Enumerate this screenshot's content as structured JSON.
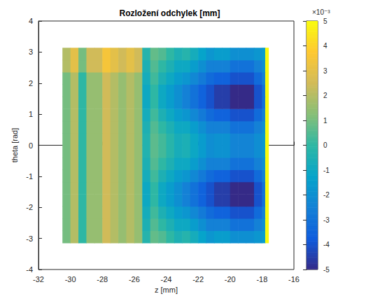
{
  "chart_data": {
    "type": "heatmap",
    "title": "Rozložení odchylek [mm]",
    "x_label": "z [mm]",
    "y_label": "theta [rad]",
    "xlim": [
      -32,
      -16
    ],
    "xticks": [
      -32,
      -30,
      -28,
      -26,
      -24,
      -22,
      -20,
      -18,
      -16
    ],
    "ylim": [
      -4,
      4
    ],
    "yticks": [
      -4,
      -3,
      -2,
      -1,
      0,
      1,
      2,
      3,
      4
    ],
    "grid": false,
    "x_edges": [
      -30.5,
      -30,
      -29.5,
      -29,
      -28.5,
      -28,
      -27.5,
      -27,
      -26.5,
      -26,
      -25.5,
      -25,
      -24.5,
      -24,
      -23.5,
      -23,
      -22.5,
      -22,
      -21.5,
      -21,
      -20.5,
      -20,
      -19.5,
      -19,
      -18.5,
      -18,
      -17.8,
      -17.6
    ],
    "y_edges": [
      -3.14,
      -2.7475,
      -2.355,
      -1.9625,
      -1.57,
      -1.1775,
      -0.785,
      -0.3925,
      0,
      0.3925,
      0.785,
      1.1775,
      1.57,
      1.9625,
      2.355,
      2.7475,
      3.14
    ],
    "cells": [
      [
        1,
        2,
        0,
        1.5,
        1.5,
        2.5,
        2,
        1.5,
        2,
        1.5,
        -0.25,
        0.75,
        0.5,
        0,
        -0.5,
        -0.25,
        -0.75,
        -1.25,
        -1.75,
        -1.5,
        -1.5,
        -2,
        -2,
        -2,
        -1.75,
        -1.5,
        5
      ],
      [
        1,
        2,
        0,
        1.5,
        1.5,
        2.5,
        2,
        1.5,
        2,
        1.5,
        -0.5,
        0.5,
        0,
        -0.5,
        -1,
        -1,
        -1.5,
        -2,
        -2.5,
        -2.5,
        -2.5,
        -3,
        -3,
        -3,
        -2.5,
        -2,
        5
      ],
      [
        1,
        2,
        0,
        1.5,
        1.5,
        2.5,
        2,
        1.5,
        2,
        1.5,
        -0.75,
        0.25,
        -0.5,
        -1,
        -1.5,
        -1.75,
        -2.25,
        -2.75,
        -3.25,
        -3.5,
        -3.5,
        -4,
        -4,
        -4,
        -3.25,
        -2.5,
        5
      ],
      [
        1,
        2,
        0,
        1.5,
        1.5,
        2.5,
        2,
        1.5,
        2,
        1.5,
        -1,
        0,
        -1,
        -1.5,
        -2,
        -2.5,
        -3,
        -3.5,
        -4,
        -4.5,
        -4.5,
        -5,
        -5,
        -5,
        -4,
        -3,
        5
      ],
      [
        1,
        2,
        0,
        1.5,
        1.5,
        2.5,
        2,
        1.5,
        2,
        1.5,
        -1,
        0,
        -1,
        -1.5,
        -2,
        -2.5,
        -3,
        -3.5,
        -4,
        -4.5,
        -4.5,
        -5,
        -5,
        -5,
        -4,
        -3,
        5
      ],
      [
        1,
        2,
        0,
        1.5,
        1.5,
        2.5,
        2,
        1.5,
        2,
        1.5,
        -0.75,
        0.25,
        -0.5,
        -1,
        -1.5,
        -1.75,
        -2.25,
        -2.75,
        -3.25,
        -3.5,
        -3.5,
        -4,
        -4,
        -4,
        -3.25,
        -2.5,
        5
      ],
      [
        1,
        2,
        0,
        1.5,
        1.5,
        2.5,
        2,
        1.5,
        2,
        1.5,
        -0.5,
        0.5,
        0,
        -0.5,
        -1,
        -1,
        -1.5,
        -2,
        -2.5,
        -2.5,
        -2.5,
        -3,
        -3,
        -3,
        -2.5,
        -2,
        5
      ],
      [
        1,
        2,
        0,
        1.5,
        1.5,
        2.5,
        2,
        1.5,
        2,
        1.5,
        -0.35,
        0.65,
        0.3,
        -0.2,
        -0.7,
        -0.55,
        -1.05,
        -1.55,
        -2.05,
        -1.9,
        -1.9,
        -2.4,
        -2.4,
        -2.4,
        -2.05,
        -1.7,
        5
      ],
      [
        1,
        2,
        0,
        1.5,
        1.5,
        2.5,
        2,
        1.5,
        2,
        1.5,
        -0.35,
        0.65,
        0.3,
        -0.2,
        -0.7,
        -0.55,
        -1.05,
        -1.55,
        -2.05,
        -1.9,
        -1.9,
        -2.4,
        -2.4,
        -2.4,
        -2.05,
        -1.7,
        5
      ],
      [
        1,
        2,
        0,
        1.5,
        1.5,
        2.5,
        2,
        1.5,
        2,
        1.5,
        -0.5,
        0.5,
        0,
        -0.5,
        -1,
        -1,
        -1.5,
        -2,
        -2.5,
        -2.5,
        -2.5,
        -3,
        -3,
        -3,
        -2.5,
        -2,
        5
      ],
      [
        1,
        2,
        0,
        1.5,
        1.5,
        2.5,
        2,
        1.5,
        2,
        1.5,
        -0.75,
        0.25,
        -0.5,
        -1,
        -1.5,
        -1.75,
        -2.25,
        -2.75,
        -3.25,
        -3.5,
        -3.5,
        -4,
        -4,
        -4,
        -3.25,
        -2.5,
        5
      ],
      [
        1,
        2,
        0,
        1.5,
        1.5,
        2.5,
        2,
        1.5,
        2,
        1.5,
        -1,
        0,
        -1,
        -1.5,
        -2,
        -2.5,
        -3,
        -3.5,
        -4,
        -4.5,
        -4.5,
        -5,
        -5,
        -5,
        -4,
        -3,
        5
      ],
      [
        1,
        2,
        0,
        1.5,
        1.5,
        2.5,
        2,
        1.5,
        2,
        1.5,
        -1,
        0,
        -1,
        -1.5,
        -2,
        -2.5,
        -3,
        -3.5,
        -4,
        -4.5,
        -4.5,
        -5,
        -5,
        -5,
        -4,
        -3,
        5
      ],
      [
        1,
        2,
        0,
        1.5,
        1.5,
        2.5,
        2,
        1.5,
        2,
        1.5,
        -0.75,
        0.25,
        -0.5,
        -1,
        -1.5,
        -1.75,
        -2.25,
        -2.75,
        -3.25,
        -3.5,
        -3.5,
        -4,
        -4,
        -4,
        -3.25,
        -2.5,
        5
      ],
      [
        2,
        3,
        1,
        2.5,
        2.5,
        3.5,
        3,
        2.5,
        3,
        2.5,
        -0.5,
        0.5,
        0,
        -0.5,
        -1,
        -1,
        -1.5,
        -2,
        -2.5,
        -2.5,
        -2.5,
        -3,
        -3,
        -3,
        -2.5,
        -2,
        5
      ],
      [
        2,
        3,
        1,
        2.5,
        2.5,
        3.5,
        3,
        2.5,
        3,
        2.5,
        -0.25,
        0.75,
        0.5,
        0,
        -0.5,
        -0.25,
        -0.75,
        -1.25,
        -1.75,
        -1.5,
        -1.5,
        -2,
        -2,
        -2,
        -1.75,
        -1.5,
        5
      ]
    ],
    "colorbar": {
      "range": [
        -5,
        5
      ],
      "ticks": [
        -5,
        -4,
        -3,
        -2,
        -1,
        0,
        1,
        2,
        3,
        4,
        5
      ],
      "multiplier": "×10⁻³"
    }
  }
}
